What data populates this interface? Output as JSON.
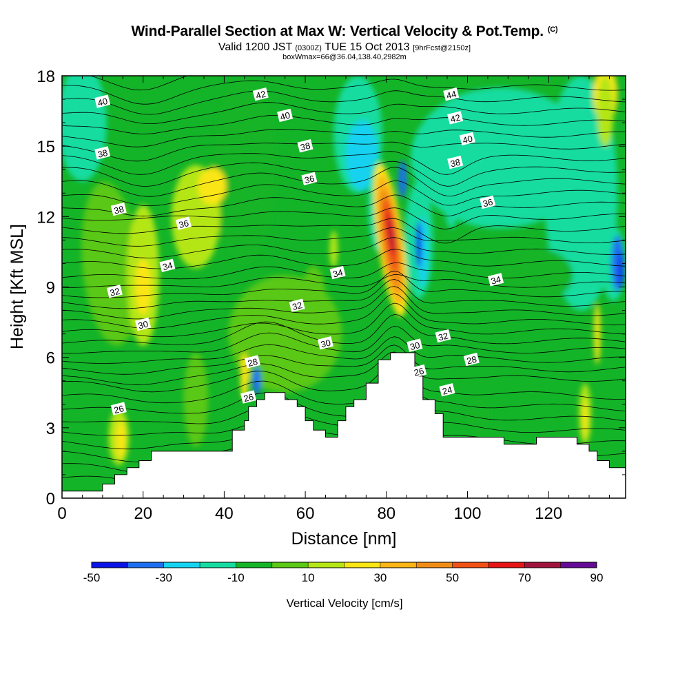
{
  "title": "Wind-Parallel Section at Max W: Vertical Velocity & Pot.Temp.",
  "title_mark": "(C)",
  "subtitle_main": "Valid 1200 JST",
  "subtitle_utc": "(0300Z)",
  "subtitle_date": "TUE 15 Oct 2013",
  "subtitle_fcst": "[9hrFcst@2150z]",
  "subtitle2": "boxWmax=66@36.04,138.40,2982m",
  "chart_data": {
    "type": "heatmap",
    "xlabel": "Distance [nm]",
    "ylabel": "Height [Kft MSL]",
    "xlim": [
      0,
      139
    ],
    "ylim": [
      0,
      18
    ],
    "x_ticks": [
      "0",
      "20",
      "40",
      "60",
      "80",
      "100",
      "120"
    ],
    "y_ticks": [
      "0",
      "3",
      "6",
      "9",
      "12",
      "15",
      "18"
    ],
    "colorbar": {
      "label": "Vertical Velocity [cm/s]",
      "tick_labels": [
        "-50",
        "-30",
        "-10",
        "10",
        "30",
        "50",
        "70",
        "90"
      ],
      "colors": [
        "#0a14e6",
        "#1e6ef0",
        "#14d2f0",
        "#14dca0",
        "#14b428",
        "#5ac814",
        "#b4e614",
        "#fae614",
        "#fab414",
        "#f08c14",
        "#f05014",
        "#e61414",
        "#a0143c",
        "#640a96"
      ]
    },
    "terrain": [
      [
        0,
        0.3
      ],
      [
        10,
        0.3
      ],
      [
        10,
        0.6
      ],
      [
        13,
        0.6
      ],
      [
        13,
        1.0
      ],
      [
        16,
        1.0
      ],
      [
        16,
        1.3
      ],
      [
        19,
        1.3
      ],
      [
        19,
        1.6
      ],
      [
        22,
        1.6
      ],
      [
        22,
        2.0
      ],
      [
        42,
        2.0
      ],
      [
        42,
        2.9
      ],
      [
        45,
        2.9
      ],
      [
        45,
        3.3
      ],
      [
        46,
        3.3
      ],
      [
        46,
        3.9
      ],
      [
        48,
        3.9
      ],
      [
        48,
        4.2
      ],
      [
        50,
        4.2
      ],
      [
        50,
        4.5
      ],
      [
        55,
        4.5
      ],
      [
        55,
        4.2
      ],
      [
        58,
        4.2
      ],
      [
        58,
        3.9
      ],
      [
        60,
        3.9
      ],
      [
        60,
        3.3
      ],
      [
        62,
        3.3
      ],
      [
        62,
        2.9
      ],
      [
        65,
        2.9
      ],
      [
        65,
        2.6
      ],
      [
        68,
        2.6
      ],
      [
        68,
        3.3
      ],
      [
        70,
        3.3
      ],
      [
        70,
        3.9
      ],
      [
        72,
        3.9
      ],
      [
        72,
        4.2
      ],
      [
        75,
        4.2
      ],
      [
        75,
        4.9
      ],
      [
        78,
        4.9
      ],
      [
        78,
        5.9
      ],
      [
        81,
        5.9
      ],
      [
        81,
        6.2
      ],
      [
        87,
        6.2
      ],
      [
        87,
        5.2
      ],
      [
        89,
        5.2
      ],
      [
        89,
        4.2
      ],
      [
        92,
        4.2
      ],
      [
        92,
        3.6
      ],
      [
        94,
        3.6
      ],
      [
        94,
        2.6
      ],
      [
        109,
        2.6
      ],
      [
        109,
        2.3
      ],
      [
        117,
        2.3
      ],
      [
        117,
        2.6
      ],
      [
        127,
        2.6
      ],
      [
        127,
        2.3
      ],
      [
        130,
        2.3
      ],
      [
        130,
        2.0
      ],
      [
        132,
        2.0
      ],
      [
        132,
        1.6
      ],
      [
        135,
        1.6
      ],
      [
        135,
        1.3
      ],
      [
        139,
        1.3
      ]
    ],
    "contour_labels": [
      {
        "x": 10,
        "y": 16.9,
        "text": "40"
      },
      {
        "x": 10,
        "y": 14.7,
        "text": "38"
      },
      {
        "x": 14,
        "y": 12.3,
        "text": "38"
      },
      {
        "x": 30,
        "y": 11.7,
        "text": "36"
      },
      {
        "x": 26,
        "y": 9.9,
        "text": "34"
      },
      {
        "x": 13,
        "y": 8.8,
        "text": "32"
      },
      {
        "x": 20,
        "y": 7.4,
        "text": "30"
      },
      {
        "x": 14,
        "y": 3.8,
        "text": "26"
      },
      {
        "x": 47,
        "y": 5.8,
        "text": "28"
      },
      {
        "x": 46,
        "y": 4.3,
        "text": "26"
      },
      {
        "x": 49,
        "y": 17.2,
        "text": "42"
      },
      {
        "x": 55,
        "y": 16.3,
        "text": "40"
      },
      {
        "x": 60,
        "y": 15.0,
        "text": "38"
      },
      {
        "x": 61,
        "y": 13.6,
        "text": "36"
      },
      {
        "x": 68,
        "y": 9.6,
        "text": "34"
      },
      {
        "x": 58,
        "y": 8.2,
        "text": "32"
      },
      {
        "x": 65,
        "y": 6.6,
        "text": "30"
      },
      {
        "x": 96,
        "y": 17.2,
        "text": "44"
      },
      {
        "x": 97,
        "y": 16.2,
        "text": "42"
      },
      {
        "x": 100,
        "y": 15.3,
        "text": "40"
      },
      {
        "x": 97,
        "y": 14.3,
        "text": "38"
      },
      {
        "x": 105,
        "y": 12.6,
        "text": "36"
      },
      {
        "x": 107,
        "y": 9.3,
        "text": "34"
      },
      {
        "x": 94,
        "y": 6.9,
        "text": "32"
      },
      {
        "x": 87,
        "y": 6.5,
        "text": "30"
      },
      {
        "x": 101,
        "y": 5.9,
        "text": "28"
      },
      {
        "x": 88,
        "y": 5.4,
        "text": "26"
      },
      {
        "x": 95,
        "y": 4.6,
        "text": "24"
      }
    ]
  }
}
